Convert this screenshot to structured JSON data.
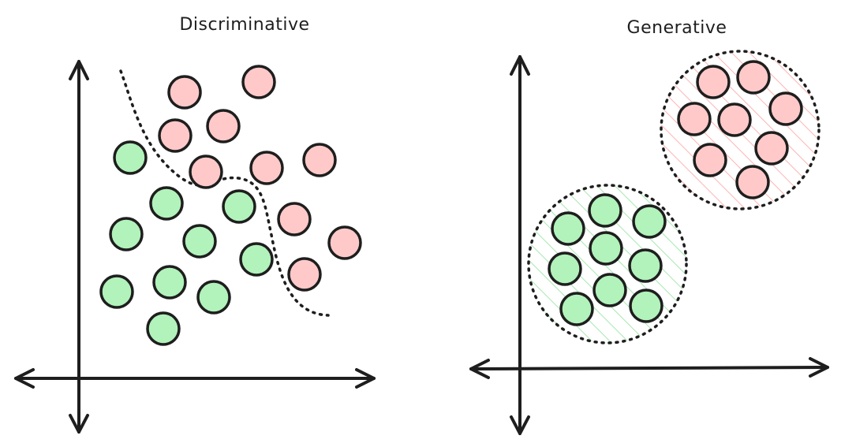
{
  "colors": {
    "ink": "#1e1e1e",
    "class_a": "#ffc9c9",
    "class_b": "#b2f2bb",
    "hatch_a": "#ffb3b3",
    "hatch_b": "#a7e8b0"
  },
  "panels": [
    {
      "id": "discriminative",
      "title": "Discriminative"
    },
    {
      "id": "generative",
      "title": "Generative"
    }
  ]
}
